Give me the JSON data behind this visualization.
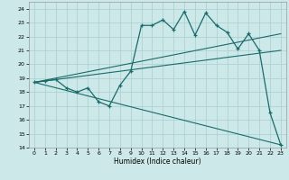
{
  "title": "",
  "xlabel": "Humidex (Indice chaleur)",
  "bg_color": "#cce8e8",
  "line_color": "#1a6b6b",
  "grid_color": "#aacece",
  "xlim": [
    -0.5,
    23.5
  ],
  "ylim": [
    14,
    24.5
  ],
  "yticks": [
    14,
    15,
    16,
    17,
    18,
    19,
    20,
    21,
    22,
    23,
    24
  ],
  "xticks": [
    0,
    1,
    2,
    3,
    4,
    5,
    6,
    7,
    8,
    9,
    10,
    11,
    12,
    13,
    14,
    15,
    16,
    17,
    18,
    19,
    20,
    21,
    22,
    23
  ],
  "line1_x": [
    0,
    1,
    2,
    3,
    4,
    5,
    6,
    7,
    8,
    9,
    10,
    11,
    12,
    13,
    14,
    15,
    16,
    17,
    18,
    19,
    20,
    21,
    22,
    23
  ],
  "line1_y": [
    18.7,
    18.8,
    18.9,
    18.3,
    18.0,
    18.3,
    17.3,
    17.0,
    18.5,
    19.5,
    22.8,
    22.8,
    23.2,
    22.5,
    23.8,
    22.1,
    23.7,
    22.8,
    22.3,
    21.1,
    22.2,
    21.0,
    16.5,
    14.2
  ],
  "line2_x": [
    0,
    23
  ],
  "line2_y": [
    18.7,
    22.2
  ],
  "line3_x": [
    0,
    23
  ],
  "line3_y": [
    18.7,
    21.0
  ],
  "line4_x": [
    0,
    23
  ],
  "line4_y": [
    18.7,
    14.2
  ]
}
